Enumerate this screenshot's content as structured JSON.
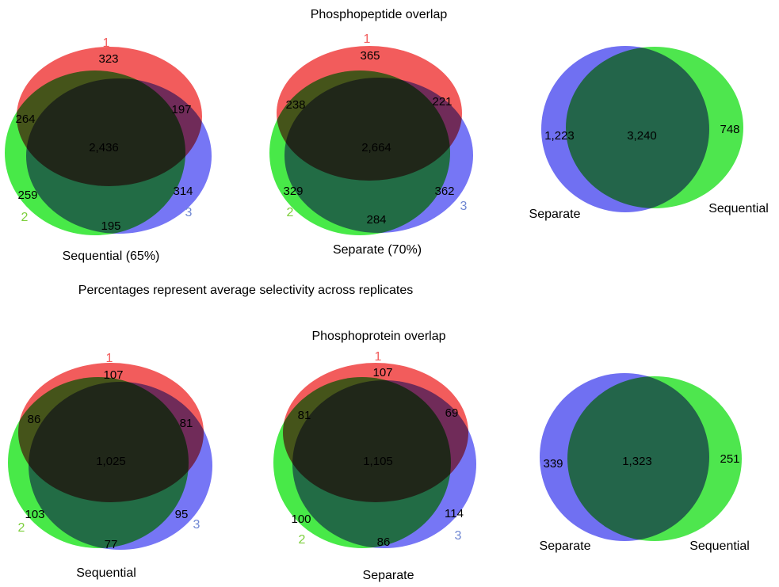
{
  "colors": {
    "set1": "#f25c5c",
    "set2": "#48e948",
    "set3": "#7676f5",
    "label1": "#f25c5c",
    "label2": "#7ccf3c",
    "label3": "#6e86d2",
    "separate": "#7070f2",
    "sequential": "#4ee64e"
  },
  "peptide_section": {
    "title": "Phosphopeptide overlap",
    "venn3": [
      {
        "caption": "Sequential (65%)",
        "set_labels": [
          "1",
          "2",
          "3"
        ],
        "counts": {
          "only_1": "323",
          "only_2": "259",
          "only_3": "314",
          "r12": "264",
          "r13": "197",
          "r23": "195",
          "all": "2,436"
        }
      },
      {
        "caption": "Separate (70%)",
        "set_labels": [
          "1",
          "2",
          "3"
        ],
        "counts": {
          "only_1": "365",
          "only_2": "329",
          "only_3": "362",
          "r12": "238",
          "r13": "221",
          "r23": "284",
          "all": "2,664"
        }
      }
    ],
    "venn2": {
      "left_label": "Separate",
      "right_label": "Sequential",
      "left_only": "1,223",
      "overlap": "3,240",
      "right_only": "748"
    }
  },
  "note": "Percentages represent average selectivity across replicates",
  "protein_section": {
    "title": "Phosphoprotein overlap",
    "venn3": [
      {
        "caption": "Sequential",
        "set_labels": [
          "1",
          "2",
          "3"
        ],
        "counts": {
          "only_1": "107",
          "only_2": "103",
          "only_3": "95",
          "r12": "86",
          "r13": "81",
          "r23": "77",
          "all": "1,025"
        }
      },
      {
        "caption": "Separate",
        "set_labels": [
          "1",
          "2",
          "3"
        ],
        "counts": {
          "only_1": "107",
          "only_2": "100",
          "only_3": "114",
          "r12": "81",
          "r13": "69",
          "r23": "86",
          "all": "1,105"
        }
      }
    ],
    "venn2": {
      "left_label": "Separate",
      "right_label": "Sequential",
      "left_only": "339",
      "overlap": "1,323",
      "right_only": "251"
    }
  }
}
